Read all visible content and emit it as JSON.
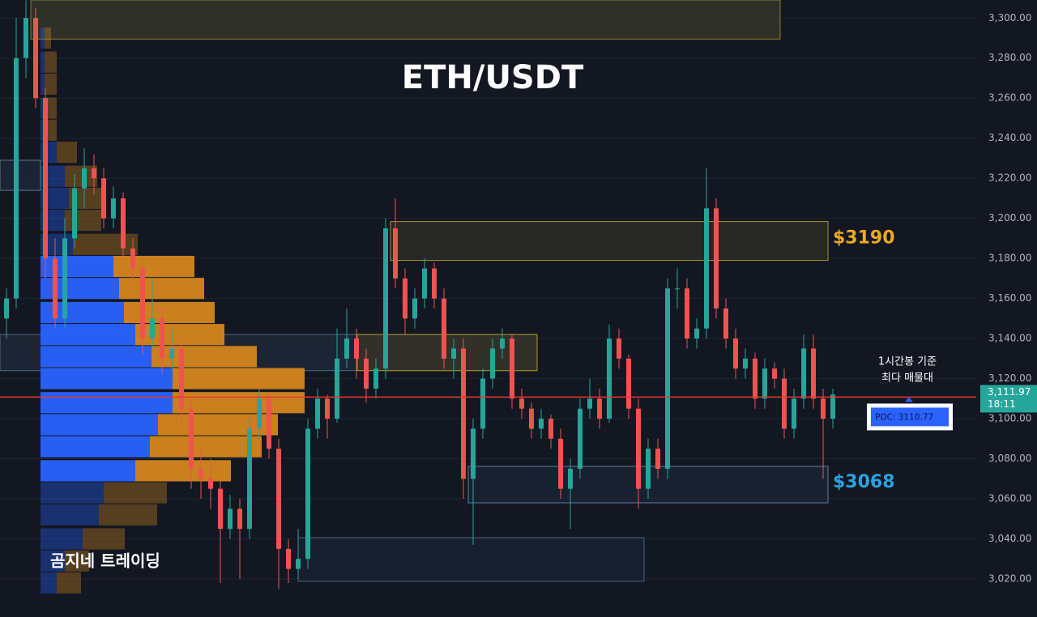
{
  "chart_data": {
    "type": "candlestick",
    "title": "ETH/USDT",
    "watermark": "곰지네 트레이딩",
    "ylim": [
      3001,
      3309
    ],
    "yticks": [
      {
        "value": 3020,
        "label": "3,020.00"
      },
      {
        "value": 3040,
        "label": "3,040.00"
      },
      {
        "value": 3060,
        "label": "3,060.00"
      },
      {
        "value": 3080,
        "label": "3,080.00"
      },
      {
        "value": 3100,
        "label": "3,100.00"
      },
      {
        "value": 3120,
        "label": "3,120.00"
      },
      {
        "value": 3140,
        "label": "3,140.00"
      },
      {
        "value": 3160,
        "label": "3,160.00"
      },
      {
        "value": 3180,
        "label": "3,180.00"
      },
      {
        "value": 3200,
        "label": "3,200.00"
      },
      {
        "value": 3220,
        "label": "3,220.00"
      },
      {
        "value": 3240,
        "label": "3,240.00"
      },
      {
        "value": 3260,
        "label": "3,260.00"
      },
      {
        "value": 3280,
        "label": "3,280.00"
      },
      {
        "value": 3300,
        "label": "3,300.00"
      }
    ],
    "grid": true,
    "up_color": "#26a69a",
    "down_color": "#ef5350",
    "candles": [
      [
        3150,
        3165,
        3140,
        3160
      ],
      [
        3160,
        3300,
        3155,
        3280
      ],
      [
        3280,
        3309,
        3270,
        3300
      ],
      [
        3300,
        3305,
        3255,
        3260
      ],
      [
        3260,
        3265,
        3170,
        3180
      ],
      [
        3180,
        3190,
        3145,
        3150
      ],
      [
        3150,
        3200,
        3145,
        3190
      ],
      [
        3190,
        3222,
        3185,
        3215
      ],
      [
        3215,
        3235,
        3205,
        3225
      ],
      [
        3225,
        3232,
        3212,
        3220
      ],
      [
        3220,
        3225,
        3195,
        3200
      ],
      [
        3200,
        3216,
        3195,
        3210
      ],
      [
        3210,
        3213,
        3180,
        3185
      ],
      [
        3185,
        3190,
        3168,
        3175
      ],
      [
        3175,
        3180,
        3132,
        3140
      ],
      [
        3140,
        3170,
        3135,
        3150
      ],
      [
        3150,
        3155,
        3122,
        3130
      ],
      [
        3130,
        3145,
        3125,
        3135
      ],
      [
        3135,
        3140,
        3098,
        3105
      ],
      [
        3105,
        3110,
        3065,
        3075
      ],
      [
        3075,
        3085,
        3060,
        3070
      ],
      [
        3070,
        3080,
        3055,
        3065
      ],
      [
        3065,
        3070,
        3018,
        3045
      ],
      [
        3045,
        3062,
        3040,
        3055
      ],
      [
        3055,
        3060,
        3020,
        3045
      ],
      [
        3045,
        3100,
        3040,
        3095
      ],
      [
        3095,
        3115,
        3090,
        3110
      ],
      [
        3110,
        3112,
        3080,
        3085
      ],
      [
        3085,
        3090,
        3015,
        3035
      ],
      [
        3035,
        3040,
        3018,
        3025
      ],
      [
        3025,
        3045,
        3020,
        3030
      ],
      [
        3030,
        3100,
        3025,
        3095
      ],
      [
        3095,
        3115,
        3090,
        3110
      ],
      [
        3110,
        3112,
        3090,
        3100
      ],
      [
        3100,
        3145,
        3098,
        3130
      ],
      [
        3130,
        3155,
        3125,
        3140
      ],
      [
        3140,
        3145,
        3120,
        3130
      ],
      [
        3130,
        3135,
        3108,
        3115
      ],
      [
        3115,
        3130,
        3110,
        3125
      ],
      [
        3125,
        3200,
        3120,
        3195
      ],
      [
        3195,
        3210,
        3165,
        3170
      ],
      [
        3170,
        3175,
        3142,
        3150
      ],
      [
        3150,
        3165,
        3145,
        3160
      ],
      [
        3160,
        3180,
        3155,
        3175
      ],
      [
        3175,
        3178,
        3155,
        3160
      ],
      [
        3160,
        3165,
        3125,
        3130
      ],
      [
        3130,
        3140,
        3120,
        3135
      ],
      [
        3135,
        3140,
        3060,
        3070
      ],
      [
        3070,
        3100,
        3037,
        3095
      ],
      [
        3095,
        3125,
        3090,
        3120
      ],
      [
        3120,
        3140,
        3115,
        3135
      ],
      [
        3135,
        3145,
        3130,
        3140
      ],
      [
        3140,
        3142,
        3105,
        3110
      ],
      [
        3110,
        3115,
        3100,
        3105
      ],
      [
        3105,
        3108,
        3090,
        3095
      ],
      [
        3095,
        3105,
        3090,
        3100
      ],
      [
        3100,
        3102,
        3085,
        3090
      ],
      [
        3090,
        3095,
        3060,
        3065
      ],
      [
        3065,
        3080,
        3045,
        3075
      ],
      [
        3075,
        3110,
        3070,
        3105
      ],
      [
        3105,
        3120,
        3100,
        3110
      ],
      [
        3110,
        3115,
        3095,
        3100
      ],
      [
        3100,
        3147,
        3098,
        3140
      ],
      [
        3140,
        3145,
        3125,
        3130
      ],
      [
        3130,
        3132,
        3100,
        3105
      ],
      [
        3105,
        3110,
        3055,
        3065
      ],
      [
        3065,
        3090,
        3060,
        3085
      ],
      [
        3085,
        3090,
        3070,
        3075
      ],
      [
        3075,
        3170,
        3070,
        3165
      ],
      [
        3165,
        3175,
        3155,
        3165
      ],
      [
        3165,
        3170,
        3135,
        3140
      ],
      [
        3140,
        3150,
        3135,
        3145
      ],
      [
        3145,
        3225,
        3140,
        3205
      ],
      [
        3205,
        3210,
        3150,
        3155
      ],
      [
        3155,
        3160,
        3135,
        3140
      ],
      [
        3140,
        3145,
        3120,
        3125
      ],
      [
        3125,
        3135,
        3120,
        3130
      ],
      [
        3130,
        3133,
        3105,
        3110
      ],
      [
        3110,
        3130,
        3105,
        3125
      ],
      [
        3125,
        3128,
        3115,
        3120
      ],
      [
        3120,
        3125,
        3090,
        3095
      ],
      [
        3095,
        3115,
        3090,
        3110
      ],
      [
        3110,
        3142,
        3105,
        3135
      ],
      [
        3135,
        3142,
        3105,
        3110
      ],
      [
        3110,
        3115,
        3070,
        3100
      ],
      [
        3100,
        3115,
        3095,
        3112
      ]
    ],
    "volume_profile": {
      "levels": [
        3290,
        3278,
        3267,
        3255,
        3244,
        3233,
        3221,
        3210,
        3199,
        3187,
        3176,
        3165,
        3153,
        3142,
        3131,
        3120,
        3108,
        3097,
        3086,
        3074,
        3063,
        3052,
        3040,
        3029,
        3018
      ],
      "up": [
        5,
        5,
        5,
        5,
        5,
        20,
        30,
        35,
        30,
        40,
        90,
        97,
        103,
        117,
        137,
        163,
        163,
        145,
        135,
        117,
        78,
        72,
        52,
        30,
        20
      ],
      "down": [
        8,
        15,
        15,
        15,
        15,
        25,
        40,
        40,
        45,
        80,
        100,
        105,
        112,
        110,
        130,
        163,
        163,
        148,
        138,
        118,
        78,
        72,
        52,
        30,
        30
      ],
      "value_area": [
        3070,
        3182
      ],
      "up_color": "#2962ff",
      "down_color": "#d4861e"
    },
    "zones": [
      {
        "low": 3289.5,
        "high": 3309
      },
      {
        "low": 3179,
        "high": 3198.4,
        "label": {
          "value": 3190,
          "label": "$3190"
        }
      },
      {
        "low": 3214,
        "high": 3229
      },
      {
        "low": 3124,
        "high": 3142
      },
      {
        "low": 3058,
        "high": 3076.2,
        "label": {
          "value": 3068,
          "label": "$3068"
        }
      },
      {
        "low": 3018.8,
        "high": 3040.6
      }
    ],
    "poc": {
      "value": 3110.77,
      "label": "POC: 3110.77"
    },
    "last_price": {
      "value": 3111.97,
      "label": "3,111.97"
    },
    "time": "18:11",
    "annotation": [
      "1시간봉 기준",
      "최다 매물대"
    ]
  }
}
